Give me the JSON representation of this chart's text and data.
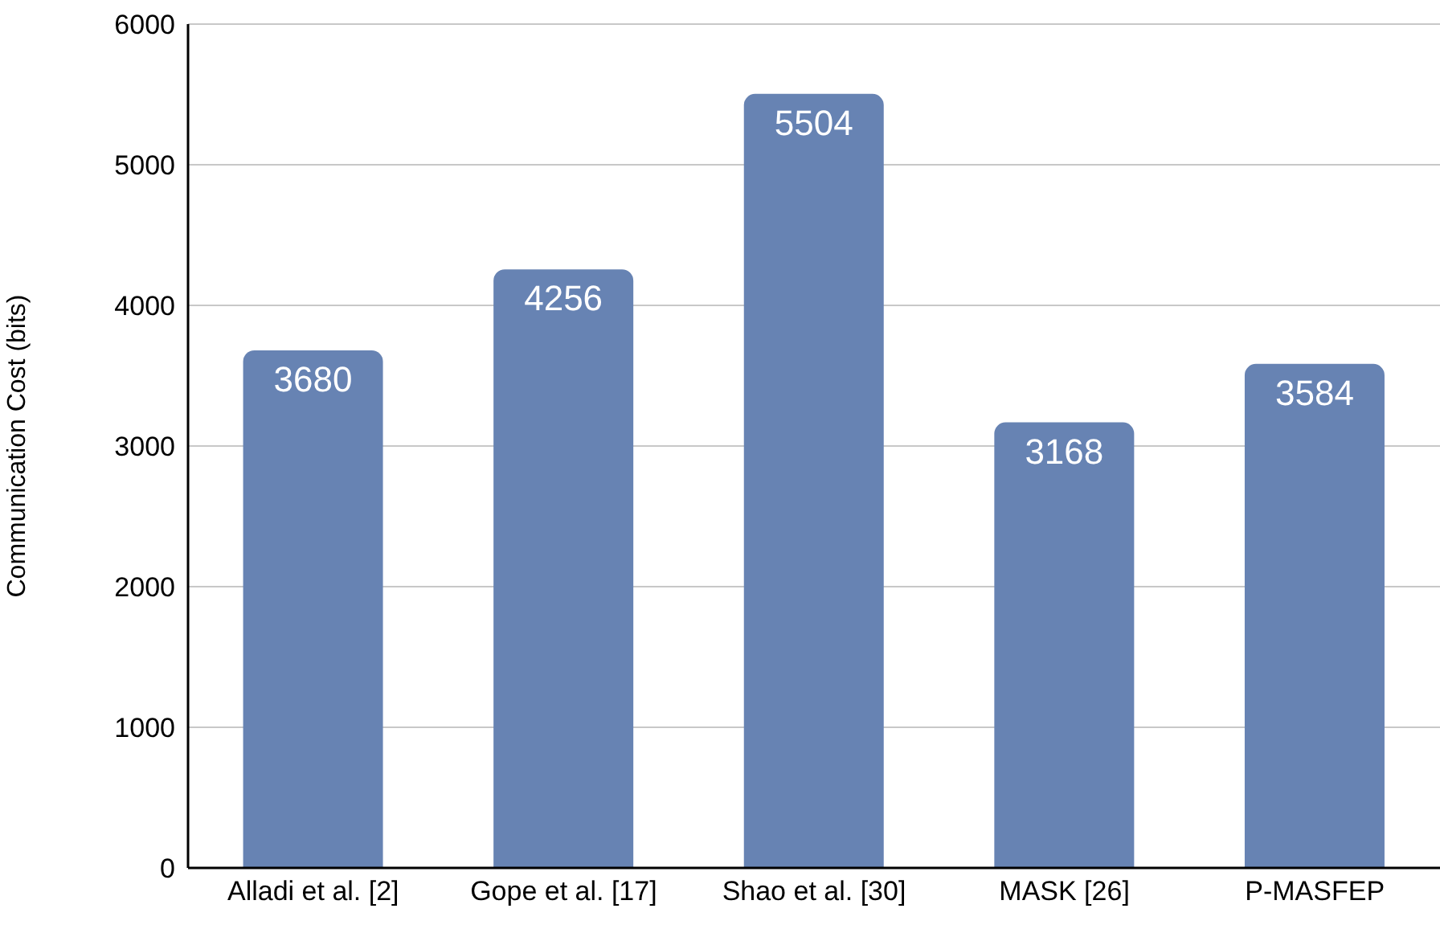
{
  "chart_data": {
    "type": "bar",
    "ylabel": "Communication Cost (bits)",
    "categories": [
      "Alladi et al. [2]",
      "Gope et al. [17]",
      "Shao et al. [30]",
      "MASK [26]",
      "P-MASFEP"
    ],
    "values": [
      3680,
      4256,
      5504,
      3168,
      3584
    ],
    "color": "#6783b3",
    "ylim": [
      0,
      6000
    ],
    "yticks": [
      0,
      1000,
      2000,
      3000,
      4000,
      5000,
      6000
    ],
    "grid": "y",
    "data_labels": true
  }
}
